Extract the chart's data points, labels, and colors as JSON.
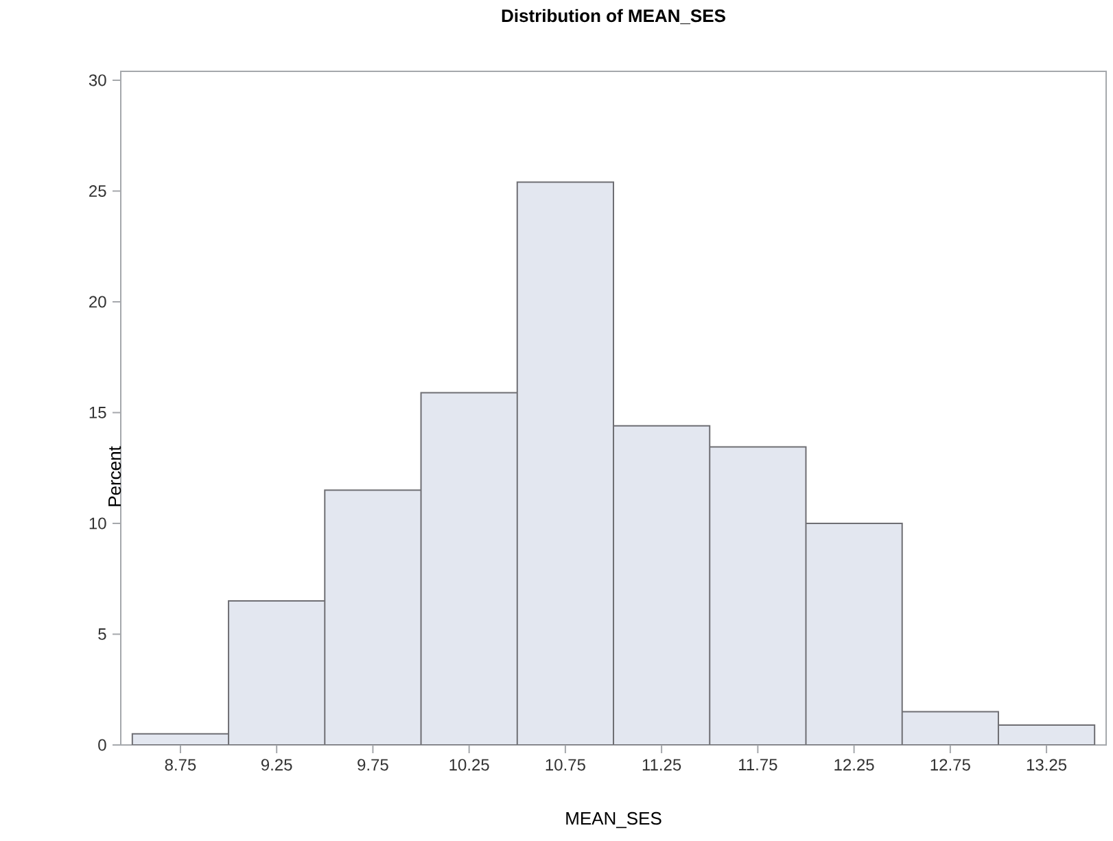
{
  "chart_data": {
    "type": "histogram",
    "title": "Distribution of MEAN_SES",
    "xlabel": "MEAN_SES",
    "ylabel": "Percent",
    "bins": [
      8.5,
      9.0,
      9.5,
      10.0,
      10.5,
      11.0,
      11.5,
      12.0,
      12.5,
      13.0,
      13.5
    ],
    "values": [
      0.5,
      6.5,
      11.5,
      15.9,
      25.4,
      14.4,
      13.45,
      10.0,
      1.5,
      0.9
    ],
    "color": "#e3e7f0",
    "xlim": [
      8.44,
      13.56
    ],
    "ylim": [
      0,
      30.4
    ],
    "xticks": [
      8.75,
      9.25,
      9.75,
      10.25,
      10.75,
      11.25,
      11.75,
      12.25,
      12.75,
      13.25
    ],
    "yticks": [
      0,
      5,
      10,
      15,
      20,
      25,
      30
    ]
  }
}
